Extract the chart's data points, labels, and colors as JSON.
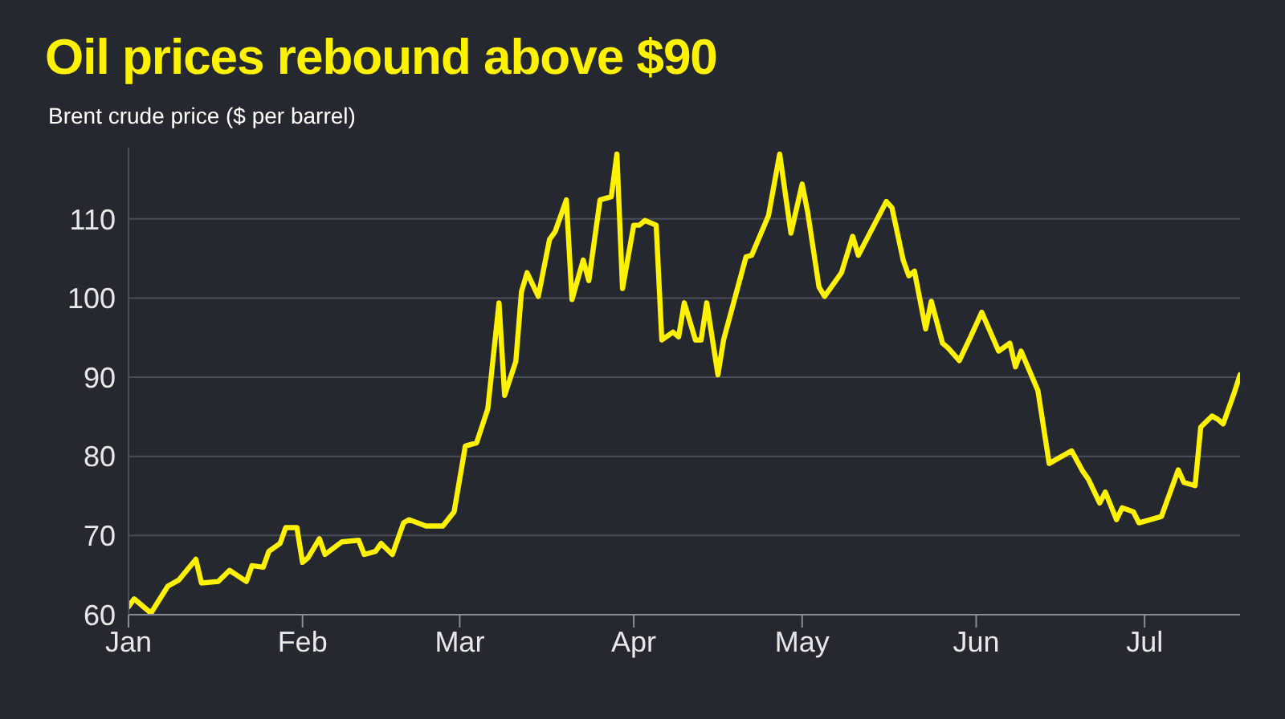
{
  "chart_data": {
    "type": "line",
    "title": "Oil prices rebound above $90",
    "subtitle": "Brent crude price ($ per barrel)",
    "x": [
      "--01-01",
      "--01-02",
      "--01-05",
      "--01-08",
      "--01-10",
      "--01-13",
      "--01-14",
      "--01-17",
      "--01-19",
      "--01-22",
      "--01-23",
      "--01-25",
      "--01-26",
      "--01-28",
      "--01-29",
      "--01-31",
      "--02-01",
      "--02-02",
      "--02-04",
      "--02-05",
      "--02-08",
      "--02-11",
      "--02-12",
      "--02-14",
      "--02-15",
      "--02-17",
      "--02-19",
      "--02-20",
      "--02-23",
      "--02-26",
      "--02-28",
      "--03-02",
      "--03-04",
      "--03-06",
      "--03-08",
      "--03-09",
      "--03-11",
      "--03-12",
      "--03-13",
      "--03-15",
      "--03-17",
      "--03-18",
      "--03-20",
      "--03-21",
      "--03-23",
      "--03-24",
      "--03-26",
      "--03-28",
      "--03-29",
      "--03-30",
      "--04-01",
      "--04-02",
      "--04-03",
      "--04-05",
      "--04-06",
      "--04-08",
      "--04-09",
      "--04-10",
      "--04-12",
      "--04-13",
      "--04-14",
      "--04-16",
      "--04-17",
      "--04-21",
      "--04-22",
      "--04-25",
      "--04-27",
      "--04-29",
      "--05-01",
      "--05-02",
      "--05-04",
      "--05-05",
      "--05-08",
      "--05-10",
      "--05-11",
      "--05-16",
      "--05-17",
      "--05-19",
      "--05-20",
      "--05-21",
      "--05-23",
      "--05-24",
      "--05-26",
      "--05-27",
      "--05-29",
      "--05-31",
      "--06-02",
      "--06-05",
      "--06-07",
      "--06-08",
      "--06-09",
      "--06-12",
      "--06-14",
      "--06-18",
      "--06-20",
      "--06-21",
      "--06-23",
      "--06-24",
      "--06-26",
      "--06-27",
      "--06-29",
      "--06-30",
      "--07-03",
      "--07-04",
      "--07-07",
      "--07-08",
      "--07-10",
      "--07-11",
      "--07-13",
      "--07-14",
      "--07-15",
      "--07-17",
      "--07-18"
    ],
    "series": [
      {
        "color": "#fff200",
        "values": [
          61,
          62,
          60.2,
          63.6,
          64.4,
          67,
          64,
          64.2,
          65.6,
          64.2,
          66.2,
          66,
          68,
          69,
          71,
          71,
          66.6,
          67.2,
          69.6,
          67.6,
          69.2,
          69.4,
          67.6,
          68,
          69,
          67.6,
          71.6,
          72,
          71.2,
          71.2,
          73,
          81.3,
          81.7,
          86,
          99.4,
          87.7,
          92,
          100.8,
          103.2,
          100.2,
          107.4,
          108.4,
          112.4,
          99.8,
          104.8,
          102.2,
          112.4,
          112.8,
          118.2,
          101.2,
          109.2,
          109.2,
          109.8,
          109.2,
          94.7,
          95.7,
          95.1,
          99.4,
          94.7,
          94.7,
          99.4,
          90.3,
          94.7,
          105.2,
          105.4,
          110.4,
          118.2,
          108.2,
          114.4,
          110.8,
          101.4,
          100.2,
          103.2,
          107.8,
          105.4,
          112.2,
          111.4,
          104.8,
          102.8,
          103.4,
          96.1,
          99.6,
          94.3,
          93.7,
          92.1,
          95.1,
          98.2,
          93.3,
          94.3,
          91.3,
          93.3,
          88.3,
          79.1,
          80.7,
          78.1,
          77.1,
          74.1,
          75.5,
          72,
          73.5,
          73,
          71.6,
          72.2,
          72.4,
          78.3,
          76.7,
          76.3,
          83.7,
          85.1,
          84.7,
          84.1,
          88.1,
          90.3
        ]
      }
    ],
    "xlim": [
      "--01-01",
      "--07-18"
    ],
    "xticks": [
      {
        "value": "--01-01",
        "label": "Jan"
      },
      {
        "value": "--02-01",
        "label": "Feb"
      },
      {
        "value": "--03-01",
        "label": "Mar"
      },
      {
        "value": "--04-01",
        "label": "Apr"
      },
      {
        "value": "--05-01",
        "label": "May"
      },
      {
        "value": "--06-01",
        "label": "Jun"
      },
      {
        "value": "--07-01",
        "label": "Jul"
      }
    ],
    "ylim": [
      60,
      119
    ],
    "yticks": [
      60,
      70,
      80,
      90,
      100,
      110
    ],
    "grid": "y",
    "marker": "none",
    "line_style": "solid"
  }
}
